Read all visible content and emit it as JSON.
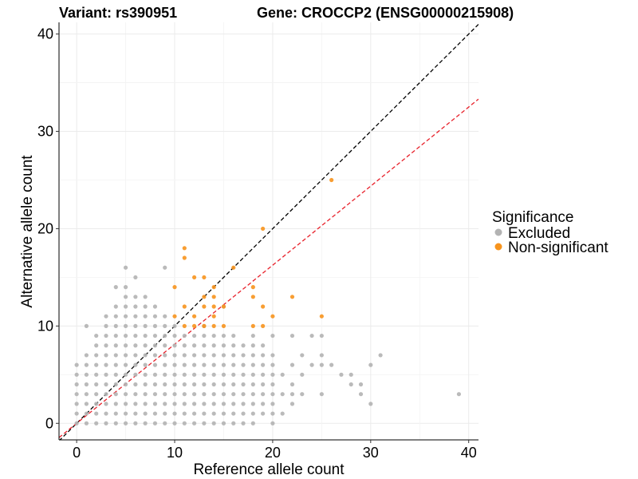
{
  "header": {
    "variant_title": "Variant: rs390951",
    "gene_title": "Gene: CROCCP2 (ENSG00000215908)"
  },
  "chart_data": {
    "type": "scatter",
    "xlabel": "Reference allele count",
    "ylabel": "Alternative allele count",
    "xlim": [
      -1.8,
      41
    ],
    "ylim": [
      -1.7,
      41.2
    ],
    "x_ticks": [
      0,
      10,
      20,
      30,
      40
    ],
    "y_ticks": [
      0,
      10,
      20,
      30,
      40
    ],
    "grid": true,
    "legend": {
      "title": "Significance",
      "position": "right",
      "entries": [
        {
          "label": "Excluded",
          "color": "#b3b3b3"
        },
        {
          "label": "Non-significant",
          "color": "#f7941d"
        }
      ]
    },
    "reference_lines": [
      {
        "slope": 1.0,
        "intercept": 0,
        "color": "#000000",
        "style": "dashed"
      },
      {
        "slope": 0.8125,
        "intercept": 0,
        "color": "#e8202a",
        "style": "dashed"
      }
    ],
    "series": [
      {
        "name": "Excluded",
        "color": "#b3b3b3",
        "points": [
          [
            0,
            0
          ],
          [
            0,
            1
          ],
          [
            0,
            2
          ],
          [
            0,
            3
          ],
          [
            0,
            4
          ],
          [
            0,
            5
          ],
          [
            0,
            6
          ],
          [
            1,
            0
          ],
          [
            1,
            1
          ],
          [
            1,
            2
          ],
          [
            1,
            3
          ],
          [
            1,
            4
          ],
          [
            1,
            5
          ],
          [
            1,
            6
          ],
          [
            1,
            7
          ],
          [
            1,
            10
          ],
          [
            2,
            0
          ],
          [
            2,
            1
          ],
          [
            2,
            2
          ],
          [
            2,
            3
          ],
          [
            2,
            4
          ],
          [
            2,
            5
          ],
          [
            2,
            6
          ],
          [
            2,
            7
          ],
          [
            2,
            8
          ],
          [
            2,
            9
          ],
          [
            3,
            0
          ],
          [
            3,
            1
          ],
          [
            3,
            2
          ],
          [
            3,
            3
          ],
          [
            3,
            4
          ],
          [
            3,
            5
          ],
          [
            3,
            6
          ],
          [
            3,
            7
          ],
          [
            3,
            8
          ],
          [
            3,
            9
          ],
          [
            3,
            10
          ],
          [
            3,
            11
          ],
          [
            4,
            0
          ],
          [
            4,
            1
          ],
          [
            4,
            2
          ],
          [
            4,
            3
          ],
          [
            4,
            4
          ],
          [
            4,
            5
          ],
          [
            4,
            6
          ],
          [
            4,
            7
          ],
          [
            4,
            8
          ],
          [
            4,
            9
          ],
          [
            4,
            10
          ],
          [
            4,
            11
          ],
          [
            4,
            12
          ],
          [
            4,
            14
          ],
          [
            5,
            0
          ],
          [
            5,
            1
          ],
          [
            5,
            2
          ],
          [
            5,
            3
          ],
          [
            5,
            4
          ],
          [
            5,
            5
          ],
          [
            5,
            6
          ],
          [
            5,
            7
          ],
          [
            5,
            8
          ],
          [
            5,
            9
          ],
          [
            5,
            10
          ],
          [
            5,
            11
          ],
          [
            5,
            12
          ],
          [
            5,
            13
          ],
          [
            5,
            14
          ],
          [
            5,
            16
          ],
          [
            6,
            0
          ],
          [
            6,
            1
          ],
          [
            6,
            2
          ],
          [
            6,
            3
          ],
          [
            6,
            4
          ],
          [
            6,
            5
          ],
          [
            6,
            6
          ],
          [
            6,
            7
          ],
          [
            6,
            8
          ],
          [
            6,
            9
          ],
          [
            6,
            10
          ],
          [
            6,
            11
          ],
          [
            6,
            12
          ],
          [
            6,
            13
          ],
          [
            6,
            15
          ],
          [
            7,
            0
          ],
          [
            7,
            1
          ],
          [
            7,
            2
          ],
          [
            7,
            3
          ],
          [
            7,
            4
          ],
          [
            7,
            5
          ],
          [
            7,
            6
          ],
          [
            7,
            7
          ],
          [
            7,
            8
          ],
          [
            7,
            9
          ],
          [
            7,
            10
          ],
          [
            7,
            11
          ],
          [
            7,
            12
          ],
          [
            7,
            13
          ],
          [
            8,
            0
          ],
          [
            8,
            1
          ],
          [
            8,
            2
          ],
          [
            8,
            3
          ],
          [
            8,
            4
          ],
          [
            8,
            5
          ],
          [
            8,
            6
          ],
          [
            8,
            7
          ],
          [
            8,
            8
          ],
          [
            8,
            9
          ],
          [
            8,
            10
          ],
          [
            8,
            11
          ],
          [
            8,
            12
          ],
          [
            9,
            0
          ],
          [
            9,
            1
          ],
          [
            9,
            2
          ],
          [
            9,
            3
          ],
          [
            9,
            4
          ],
          [
            9,
            5
          ],
          [
            9,
            6
          ],
          [
            9,
            7
          ],
          [
            9,
            8
          ],
          [
            9,
            9
          ],
          [
            9,
            10
          ],
          [
            9,
            11
          ],
          [
            9,
            16
          ],
          [
            10,
            0
          ],
          [
            10,
            1
          ],
          [
            10,
            2
          ],
          [
            10,
            3
          ],
          [
            10,
            4
          ],
          [
            10,
            5
          ],
          [
            10,
            6
          ],
          [
            10,
            7
          ],
          [
            10,
            8
          ],
          [
            10,
            9
          ],
          [
            10,
            10
          ],
          [
            11,
            0
          ],
          [
            11,
            1
          ],
          [
            11,
            2
          ],
          [
            11,
            3
          ],
          [
            11,
            4
          ],
          [
            11,
            5
          ],
          [
            11,
            6
          ],
          [
            11,
            7
          ],
          [
            11,
            8
          ],
          [
            11,
            9
          ],
          [
            12,
            0
          ],
          [
            12,
            1
          ],
          [
            12,
            2
          ],
          [
            12,
            3
          ],
          [
            12,
            4
          ],
          [
            12,
            5
          ],
          [
            12,
            6
          ],
          [
            12,
            7
          ],
          [
            12,
            8
          ],
          [
            12,
            9
          ],
          [
            13,
            0
          ],
          [
            13,
            1
          ],
          [
            13,
            2
          ],
          [
            13,
            3
          ],
          [
            13,
            4
          ],
          [
            13,
            5
          ],
          [
            13,
            6
          ],
          [
            13,
            7
          ],
          [
            13,
            8
          ],
          [
            13,
            9
          ],
          [
            13,
            10
          ],
          [
            14,
            0
          ],
          [
            14,
            1
          ],
          [
            14,
            2
          ],
          [
            14,
            3
          ],
          [
            14,
            4
          ],
          [
            14,
            5
          ],
          [
            14,
            6
          ],
          [
            14,
            7
          ],
          [
            14,
            8
          ],
          [
            14,
            9
          ],
          [
            15,
            0
          ],
          [
            15,
            1
          ],
          [
            15,
            2
          ],
          [
            15,
            3
          ],
          [
            15,
            4
          ],
          [
            15,
            5
          ],
          [
            15,
            6
          ],
          [
            15,
            7
          ],
          [
            15,
            8
          ],
          [
            15,
            9
          ],
          [
            15,
            12
          ],
          [
            16,
            0
          ],
          [
            16,
            1
          ],
          [
            16,
            2
          ],
          [
            16,
            3
          ],
          [
            16,
            4
          ],
          [
            16,
            5
          ],
          [
            16,
            6
          ],
          [
            16,
            7
          ],
          [
            16,
            8
          ],
          [
            16,
            9
          ],
          [
            17,
            0
          ],
          [
            17,
            1
          ],
          [
            17,
            2
          ],
          [
            17,
            3
          ],
          [
            17,
            4
          ],
          [
            17,
            5
          ],
          [
            17,
            6
          ],
          [
            17,
            7
          ],
          [
            17,
            8
          ],
          [
            18,
            0
          ],
          [
            18,
            1
          ],
          [
            18,
            2
          ],
          [
            18,
            3
          ],
          [
            18,
            4
          ],
          [
            18,
            5
          ],
          [
            18,
            6
          ],
          [
            18,
            7
          ],
          [
            18,
            8
          ],
          [
            18,
            9
          ],
          [
            19,
            1
          ],
          [
            19,
            2
          ],
          [
            19,
            3
          ],
          [
            19,
            4
          ],
          [
            19,
            5
          ],
          [
            19,
            6
          ],
          [
            19,
            7
          ],
          [
            19,
            8
          ],
          [
            20,
            0
          ],
          [
            20,
            1
          ],
          [
            20,
            2
          ],
          [
            20,
            3
          ],
          [
            20,
            4
          ],
          [
            20,
            5
          ],
          [
            20,
            6
          ],
          [
            20,
            7
          ],
          [
            20,
            9
          ],
          [
            21,
            1
          ],
          [
            21,
            3
          ],
          [
            21,
            5
          ],
          [
            22,
            2
          ],
          [
            22,
            3
          ],
          [
            22,
            4
          ],
          [
            22,
            6
          ],
          [
            22,
            9
          ],
          [
            23,
            3
          ],
          [
            23,
            5
          ],
          [
            23,
            7
          ],
          [
            24,
            6
          ],
          [
            24,
            9
          ],
          [
            25,
            3
          ],
          [
            25,
            6
          ],
          [
            25,
            7
          ],
          [
            25,
            9
          ],
          [
            26,
            6
          ],
          [
            27,
            5
          ],
          [
            28,
            4
          ],
          [
            28,
            5
          ],
          [
            29,
            3
          ],
          [
            29,
            4
          ],
          [
            30,
            2
          ],
          [
            30,
            6
          ],
          [
            31,
            7
          ],
          [
            39,
            3
          ]
        ]
      },
      {
        "name": "Non-significant",
        "color": "#f7941d",
        "points": [
          [
            10,
            14
          ],
          [
            10,
            11
          ],
          [
            11,
            18
          ],
          [
            11,
            17
          ],
          [
            11,
            12
          ],
          [
            11,
            10
          ],
          [
            12,
            15
          ],
          [
            12,
            11
          ],
          [
            12,
            10
          ],
          [
            13,
            15
          ],
          [
            13,
            13
          ],
          [
            13,
            12
          ],
          [
            13,
            10
          ],
          [
            14,
            14
          ],
          [
            14,
            13
          ],
          [
            14,
            12
          ],
          [
            14,
            11
          ],
          [
            14,
            10
          ],
          [
            15,
            12
          ],
          [
            15,
            10
          ],
          [
            16,
            16
          ],
          [
            18,
            14
          ],
          [
            18,
            13
          ],
          [
            18,
            10
          ],
          [
            19,
            20
          ],
          [
            19,
            12
          ],
          [
            19,
            10
          ],
          [
            20,
            11
          ],
          [
            22,
            13
          ],
          [
            25,
            11
          ],
          [
            26,
            25
          ]
        ]
      }
    ]
  }
}
